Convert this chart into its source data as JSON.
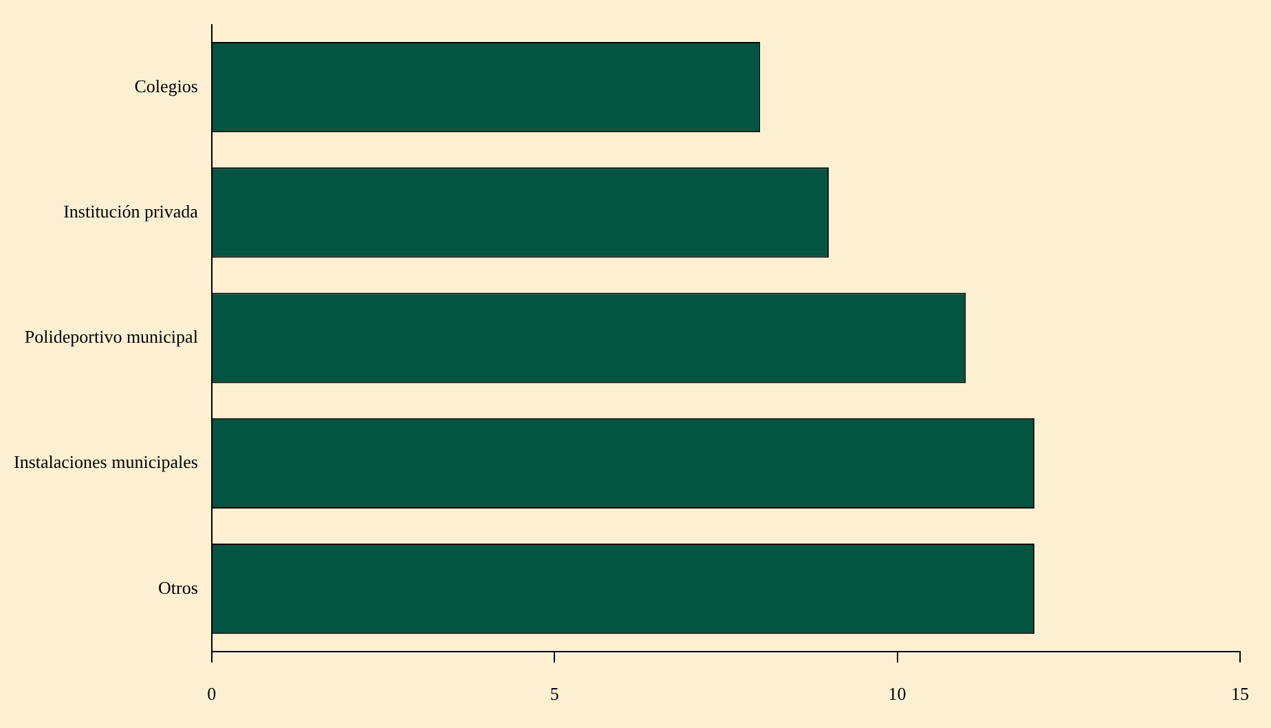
{
  "chart_data": {
    "type": "bar",
    "orientation": "horizontal",
    "categories": [
      "Colegios",
      "Institución privada",
      "Polideportivo municipal",
      "Instalaciones municipales",
      "Otros"
    ],
    "values": [
      8,
      9,
      11,
      12,
      12
    ],
    "color": "#035441",
    "xlim": [
      0,
      15
    ],
    "xticks": [
      0,
      5,
      10,
      15
    ],
    "grid": false,
    "legend": false
  }
}
